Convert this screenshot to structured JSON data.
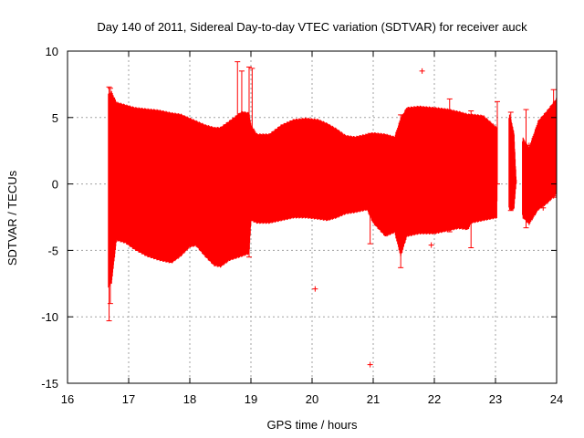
{
  "colors": {
    "series": "#ff0000",
    "grid": "#a0a0a0",
    "axis": "#000000",
    "background": "#ffffff"
  },
  "chart_data": {
    "type": "scatter",
    "title": "Day 140 of 2011, Sidereal Day-to-day VTEC variation (SDTVAR) for receiver auck",
    "xlabel": "GPS time / hours",
    "ylabel": "SDTVAR / TECUs",
    "xlim": [
      16,
      24
    ],
    "ylim": [
      -15,
      10
    ],
    "xticks": [
      16,
      17,
      18,
      19,
      20,
      21,
      22,
      23,
      24
    ],
    "yticks": [
      -15,
      -10,
      -5,
      0,
      5,
      10
    ],
    "grid": true,
    "series": [
      {
        "name": "SDTVAR",
        "style": "dense error-bar band",
        "envelope": [
          [
            16.67,
            6.8,
            -7.8
          ],
          [
            16.72,
            7.0,
            -7.5
          ],
          [
            16.8,
            6.2,
            -4.3
          ],
          [
            16.95,
            6.0,
            -4.5
          ],
          [
            17.1,
            5.8,
            -5.0
          ],
          [
            17.3,
            5.7,
            -5.5
          ],
          [
            17.5,
            5.6,
            -5.8
          ],
          [
            17.7,
            5.4,
            -6.0
          ],
          [
            17.85,
            5.3,
            -5.5
          ],
          [
            18.0,
            5.0,
            -4.8
          ],
          [
            18.1,
            4.8,
            -4.7
          ],
          [
            18.25,
            4.5,
            -5.5
          ],
          [
            18.4,
            4.3,
            -6.2
          ],
          [
            18.5,
            4.3,
            -6.3
          ],
          [
            18.65,
            4.8,
            -5.8
          ],
          [
            18.85,
            5.5,
            -5.5
          ],
          [
            18.97,
            5.4,
            -5.3
          ],
          [
            19.0,
            4.5,
            -2.8
          ],
          [
            19.1,
            3.8,
            -3.0
          ],
          [
            19.3,
            3.8,
            -3.0
          ],
          [
            19.5,
            4.5,
            -2.8
          ],
          [
            19.7,
            4.9,
            -2.6
          ],
          [
            19.9,
            5.0,
            -2.6
          ],
          [
            20.1,
            4.9,
            -2.7
          ],
          [
            20.25,
            4.6,
            -2.8
          ],
          [
            20.4,
            4.2,
            -2.6
          ],
          [
            20.55,
            3.7,
            -2.3
          ],
          [
            20.7,
            3.6,
            -2.2
          ],
          [
            20.9,
            3.8,
            -2.0
          ],
          [
            21.0,
            3.9,
            -3.0
          ],
          [
            21.2,
            3.8,
            -4.0
          ],
          [
            21.35,
            3.6,
            -3.7
          ],
          [
            21.45,
            5.0,
            -5.5
          ],
          [
            21.55,
            5.8,
            -4.0
          ],
          [
            21.75,
            5.9,
            -3.8
          ],
          [
            22.0,
            5.8,
            -3.8
          ],
          [
            22.2,
            5.7,
            -3.6
          ],
          [
            22.4,
            5.5,
            -3.4
          ],
          [
            22.55,
            5.3,
            -3.5
          ],
          [
            22.6,
            5.3,
            -3.0
          ],
          [
            22.8,
            5.2,
            -2.8
          ],
          [
            23.02,
            4.3,
            -2.6
          ],
          [
            23.03,
            0.5,
            0.3
          ],
          [
            23.23,
            5.3,
            -2.0
          ],
          [
            23.3,
            4.0,
            -2.0
          ],
          [
            23.34,
            0.2,
            0.1
          ],
          [
            23.45,
            3.5,
            -2.6
          ],
          [
            23.55,
            2.8,
            -3.1
          ],
          [
            23.7,
            4.8,
            -2.0
          ],
          [
            23.85,
            5.6,
            -1.5
          ],
          [
            24.0,
            6.5,
            -0.8
          ]
        ],
        "gaps": [
          [
            23.03,
            23.22
          ],
          [
            23.34,
            23.44
          ]
        ],
        "spikes": [
          [
            16.68,
            7.3,
            -10.3
          ],
          [
            16.7,
            7.2,
            -9.0
          ],
          [
            18.78,
            9.2,
            -3.0
          ],
          [
            18.85,
            8.5,
            -4.0
          ],
          [
            18.97,
            8.8,
            -5.5
          ],
          [
            19.02,
            8.7,
            -2.0
          ],
          [
            20.95,
            3.8,
            -4.5
          ],
          [
            21.45,
            5.2,
            -6.3
          ],
          [
            22.25,
            6.4,
            -3.6
          ],
          [
            22.6,
            5.5,
            -4.8
          ],
          [
            23.03,
            6.2,
            0.0
          ],
          [
            23.25,
            5.4,
            -2.0
          ],
          [
            23.5,
            5.6,
            -3.3
          ],
          [
            23.95,
            7.1,
            -1.0
          ]
        ],
        "outliers": [
          [
            20.05,
            -7.9
          ],
          [
            20.95,
            -13.6
          ],
          [
            21.8,
            8.5
          ],
          [
            21.95,
            -4.6
          ],
          [
            23.55,
            2.9
          ],
          [
            23.78,
            -1.8
          ],
          [
            23.95,
            -0.9
          ]
        ]
      }
    ]
  }
}
